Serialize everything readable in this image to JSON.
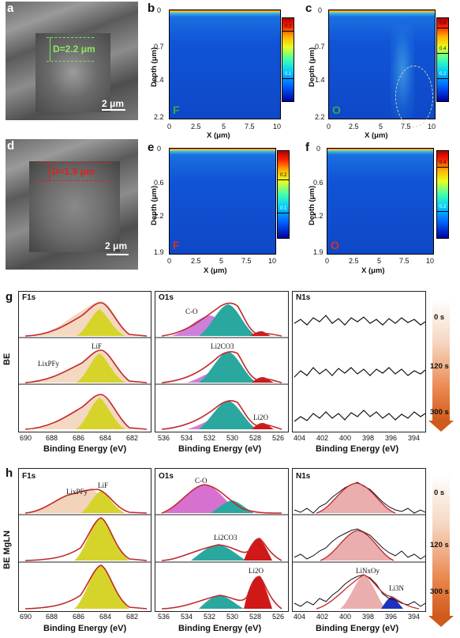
{
  "panels": {
    "a": {
      "label": "a",
      "annotation": "D=2.2 μm",
      "scale": "2 μm"
    },
    "d": {
      "label": "d",
      "annotation": "D=1.9 μm",
      "scale": "2 μm"
    },
    "b": {
      "label": "b",
      "element": "F",
      "cbar_ticks": [
        "0.2",
        "0.1"
      ]
    },
    "c": {
      "label": "c",
      "element": "O",
      "cbar_ticks": [
        "0.6",
        "0.4",
        "0.2"
      ]
    },
    "e": {
      "label": "e",
      "element": "F",
      "cbar_ticks": [
        "0.2",
        "0.1"
      ]
    },
    "f": {
      "label": "f",
      "element": "O",
      "cbar_ticks": [
        "0.4",
        "0.2"
      ]
    }
  },
  "depth_axis_top": {
    "ylabel": "Depth (μm)",
    "yticks": [
      "0",
      "0.7",
      "1.4",
      "2.2"
    ],
    "xlabel": "X (μm)",
    "xticks": [
      "0",
      "2.5",
      "5",
      "7.5",
      "10"
    ]
  },
  "depth_axis_bottom": {
    "ylabel": "Depth (μm)",
    "yticks": [
      "0",
      "0.6",
      "1.2",
      "1.9"
    ],
    "xlabel": "X (μm)",
    "xticks": [
      "0",
      "2.5",
      "5",
      "7.5",
      "10"
    ]
  },
  "g": {
    "label": "g",
    "side_label": "BE",
    "titles": [
      "F1s",
      "O1s",
      "N1s"
    ],
    "f_ticks": [
      "690",
      "688",
      "686",
      "684",
      "682"
    ],
    "o_ticks": [
      "536",
      "534",
      "532",
      "530",
      "528",
      "526"
    ],
    "n_ticks": [
      "404",
      "402",
      "400",
      "398",
      "396",
      "394"
    ],
    "xlabel": "Binding Energy (eV)",
    "annotations": {
      "lipf": "LixPFy",
      "lif": "LiF",
      "co": "C-O",
      "li2co3": "Li2CO3",
      "li2o": "Li2O"
    },
    "times": [
      "0 s",
      "120 s",
      "300 s"
    ]
  },
  "h": {
    "label": "h",
    "side_label": "BE MgLN",
    "titles": [
      "F1s",
      "O1s",
      "N1s"
    ],
    "f_ticks": [
      "690",
      "688",
      "686",
      "684",
      "682"
    ],
    "o_ticks": [
      "536",
      "534",
      "532",
      "530",
      "528",
      "526"
    ],
    "n_ticks": [
      "404",
      "402",
      "400",
      "398",
      "396",
      "394"
    ],
    "xlabel": "Binding Energy (eV)",
    "annotations": {
      "lipf": "LixPFy",
      "lif": "LiF",
      "co": "C-O",
      "li2co3": "Li2CO3",
      "li2o": "Li2O",
      "linxoy": "LiNxOy",
      "li3n": "Li3N"
    },
    "times": [
      "0 s",
      "120 s",
      "300 s"
    ]
  },
  "colors": {
    "envelope": "#c0282c",
    "lif": "#c8c81a",
    "co": "#b050c8",
    "li2co3": "#2aa8a0",
    "li2o": "#d01818",
    "lipf": "#e0a070",
    "n_fill": "#e6a0a0",
    "li3n": "#2030c0"
  }
}
